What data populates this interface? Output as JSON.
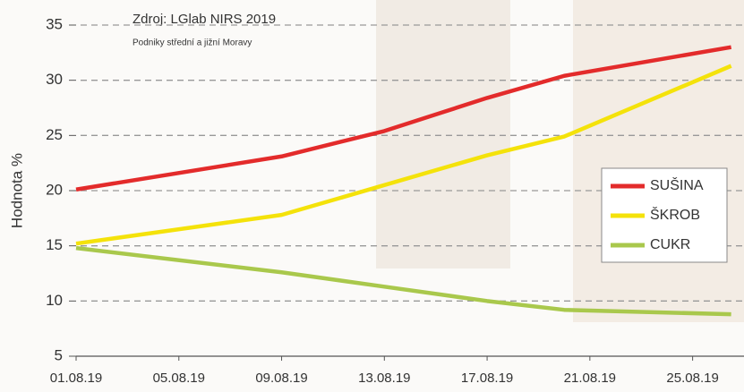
{
  "chart_data": {
    "type": "line",
    "annotations": [
      "Zdroj: LGlab NIRS 2019",
      "Podniky střední a jižní Moravy"
    ],
    "y_label": "Hodnota %",
    "x": [
      1,
      9,
      13,
      17,
      20,
      26.5
    ],
    "xlim": [
      1,
      27
    ],
    "xticks": [
      {
        "value": 1,
        "label": "01.08.19"
      },
      {
        "value": 5,
        "label": "05.08.19"
      },
      {
        "value": 9,
        "label": "09.08.19"
      },
      {
        "value": 13,
        "label": "13.08.19"
      },
      {
        "value": 17,
        "label": "17.08.19"
      },
      {
        "value": 21,
        "label": "21.08.19"
      },
      {
        "value": 25,
        "label": "25.08.19"
      }
    ],
    "ylim": [
      5,
      35
    ],
    "yticks": [
      5,
      10,
      15,
      20,
      25,
      30,
      35
    ],
    "grid": true,
    "legend": "right",
    "series": [
      {
        "name": "SUŠINA",
        "color": "#e32b2b",
        "values": [
          20.1,
          23.1,
          25.4,
          28.4,
          30.4,
          33.0
        ]
      },
      {
        "name": "ŠKROB",
        "color": "#f4e20a",
        "values": [
          15.2,
          17.8,
          20.5,
          23.2,
          24.9,
          31.3
        ]
      },
      {
        "name": "CUKR",
        "color": "#a9c84c",
        "values": [
          14.8,
          12.6,
          11.3,
          10.0,
          9.2,
          8.8
        ]
      }
    ]
  }
}
